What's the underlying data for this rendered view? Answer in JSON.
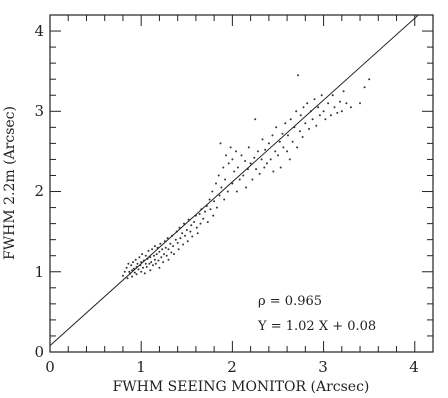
{
  "chart_data": {
    "type": "scatter",
    "xlabel": "FWHM SEEING MONITOR (Arcsec)",
    "ylabel": "FWHM 2.2m (Arcsec)",
    "xlim": [
      0,
      4.2
    ],
    "ylim": [
      0,
      4.2
    ],
    "x_ticks": [
      "0",
      "1",
      "2",
      "3",
      "4"
    ],
    "y_ticks": [
      "0",
      "1",
      "2",
      "3",
      "4"
    ],
    "minor_ticks_per_major": 5,
    "grid": false,
    "legend": "none",
    "fit_line": {
      "slope": 1.02,
      "intercept": 0.08
    },
    "annotations": {
      "rho": "ρ = 0.965",
      "equation": "Y = 1.02 X + 0.08"
    },
    "points": [
      [
        0.8,
        0.95
      ],
      [
        0.82,
        1.0
      ],
      [
        0.84,
        1.05
      ],
      [
        0.85,
        0.92
      ],
      [
        0.86,
        1.1
      ],
      [
        0.87,
        1.0
      ],
      [
        0.88,
        0.98
      ],
      [
        0.89,
        1.08
      ],
      [
        0.9,
        1.02
      ],
      [
        0.9,
        0.94
      ],
      [
        0.91,
        1.12
      ],
      [
        0.92,
        1.04
      ],
      [
        0.93,
        0.99
      ],
      [
        0.94,
        1.15
      ],
      [
        0.95,
        1.06
      ],
      [
        0.95,
        0.97
      ],
      [
        0.96,
        1.1
      ],
      [
        0.97,
        1.03
      ],
      [
        0.98,
        1.18
      ],
      [
        0.99,
        1.08
      ],
      [
        1.0,
        1.0
      ],
      [
        1.0,
        1.12
      ],
      [
        1.01,
        1.22
      ],
      [
        1.02,
        1.05
      ],
      [
        1.03,
        1.14
      ],
      [
        1.04,
        0.98
      ],
      [
        1.05,
        1.1
      ],
      [
        1.05,
        1.2
      ],
      [
        1.06,
        1.06
      ],
      [
        1.07,
        1.16
      ],
      [
        1.08,
        1.26
      ],
      [
        1.09,
        1.1
      ],
      [
        1.1,
        1.02
      ],
      [
        1.1,
        1.18
      ],
      [
        1.11,
        1.12
      ],
      [
        1.12,
        1.28
      ],
      [
        1.13,
        1.08
      ],
      [
        1.14,
        1.2
      ],
      [
        1.15,
        1.15
      ],
      [
        1.15,
        1.32
      ],
      [
        1.16,
        1.1
      ],
      [
        1.17,
        1.22
      ],
      [
        1.18,
        1.3
      ],
      [
        1.19,
        1.14
      ],
      [
        1.2,
        1.25
      ],
      [
        1.2,
        1.05
      ],
      [
        1.21,
        1.35
      ],
      [
        1.22,
        1.18
      ],
      [
        1.23,
        1.28
      ],
      [
        1.24,
        1.12
      ],
      [
        1.25,
        1.22
      ],
      [
        1.26,
        1.38
      ],
      [
        1.27,
        1.3
      ],
      [
        1.28,
        1.2
      ],
      [
        1.29,
        1.42
      ],
      [
        1.3,
        1.28
      ],
      [
        1.3,
        1.15
      ],
      [
        1.32,
        1.35
      ],
      [
        1.33,
        1.24
      ],
      [
        1.34,
        1.45
      ],
      [
        1.35,
        1.32
      ],
      [
        1.36,
        1.22
      ],
      [
        1.38,
        1.4
      ],
      [
        1.39,
        1.5
      ],
      [
        1.4,
        1.36
      ],
      [
        1.41,
        1.28
      ],
      [
        1.42,
        1.55
      ],
      [
        1.43,
        1.42
      ],
      [
        1.45,
        1.48
      ],
      [
        1.46,
        1.34
      ],
      [
        1.47,
        1.6
      ],
      [
        1.48,
        1.45
      ],
      [
        1.5,
        1.52
      ],
      [
        1.51,
        1.38
      ],
      [
        1.52,
        1.65
      ],
      [
        1.54,
        1.5
      ],
      [
        1.55,
        1.58
      ],
      [
        1.56,
        1.44
      ],
      [
        1.58,
        1.62
      ],
      [
        1.6,
        1.7
      ],
      [
        1.61,
        1.55
      ],
      [
        1.62,
        1.48
      ],
      [
        1.64,
        1.72
      ],
      [
        1.65,
        1.6
      ],
      [
        1.66,
        1.78
      ],
      [
        1.68,
        1.66
      ],
      [
        1.7,
        1.75
      ],
      [
        1.72,
        1.82
      ],
      [
        1.73,
        1.62
      ],
      [
        1.75,
        1.9
      ],
      [
        1.76,
        1.78
      ],
      [
        1.78,
        2.0
      ],
      [
        1.79,
        1.7
      ],
      [
        1.8,
        1.88
      ],
      [
        1.82,
        2.1
      ],
      [
        1.83,
        1.8
      ],
      [
        1.85,
        2.2
      ],
      [
        1.86,
        1.95
      ],
      [
        1.87,
        2.6
      ],
      [
        1.88,
        2.05
      ],
      [
        1.9,
        2.3
      ],
      [
        1.91,
        1.9
      ],
      [
        1.92,
        2.15
      ],
      [
        1.93,
        2.45
      ],
      [
        1.95,
        2.0
      ],
      [
        1.96,
        2.35
      ],
      [
        1.98,
        2.55
      ],
      [
        2.0,
        2.1
      ],
      [
        2.0,
        2.4
      ],
      [
        2.02,
        2.25
      ],
      [
        2.04,
        2.5
      ],
      [
        2.05,
        2.0
      ],
      [
        2.06,
        2.3
      ],
      [
        2.08,
        2.15
      ],
      [
        2.1,
        2.45
      ],
      [
        2.12,
        2.2
      ],
      [
        2.14,
        2.38
      ],
      [
        2.15,
        2.05
      ],
      [
        2.17,
        2.28
      ],
      [
        2.18,
        2.55
      ],
      [
        2.2,
        2.35
      ],
      [
        2.22,
        2.15
      ],
      [
        2.24,
        2.42
      ],
      [
        2.25,
        2.9
      ],
      [
        2.26,
        2.28
      ],
      [
        2.28,
        2.5
      ],
      [
        2.3,
        2.22
      ],
      [
        2.32,
        2.4
      ],
      [
        2.33,
        2.65
      ],
      [
        2.35,
        2.3
      ],
      [
        2.36,
        2.52
      ],
      [
        2.38,
        2.35
      ],
      [
        2.4,
        2.6
      ],
      [
        2.42,
        2.4
      ],
      [
        2.44,
        2.7
      ],
      [
        2.45,
        2.25
      ],
      [
        2.47,
        2.5
      ],
      [
        2.48,
        2.8
      ],
      [
        2.5,
        2.45
      ],
      [
        2.52,
        2.62
      ],
      [
        2.53,
        2.3
      ],
      [
        2.55,
        2.72
      ],
      [
        2.56,
        2.55
      ],
      [
        2.58,
        2.85
      ],
      [
        2.6,
        2.5
      ],
      [
        2.61,
        2.7
      ],
      [
        2.63,
        2.4
      ],
      [
        2.64,
        2.9
      ],
      [
        2.66,
        2.62
      ],
      [
        2.68,
        2.8
      ],
      [
        2.7,
        3.0
      ],
      [
        2.71,
        2.55
      ],
      [
        2.72,
        3.45
      ],
      [
        2.74,
        2.75
      ],
      [
        2.75,
        2.95
      ],
      [
        2.77,
        2.68
      ],
      [
        2.78,
        3.05
      ],
      [
        2.8,
        2.85
      ],
      [
        2.82,
        3.1
      ],
      [
        2.84,
        2.78
      ],
      [
        2.86,
        3.0
      ],
      [
        2.88,
        2.9
      ],
      [
        2.9,
        3.15
      ],
      [
        2.92,
        2.82
      ],
      [
        2.94,
        3.05
      ],
      [
        2.96,
        2.95
      ],
      [
        2.98,
        3.2
      ],
      [
        3.0,
        3.0
      ],
      [
        3.02,
        2.9
      ],
      [
        3.05,
        3.1
      ],
      [
        3.08,
        2.95
      ],
      [
        3.1,
        3.2
      ],
      [
        3.12,
        3.05
      ],
      [
        3.15,
        2.98
      ],
      [
        3.18,
        3.12
      ],
      [
        3.2,
        3.0
      ],
      [
        3.22,
        3.25
      ],
      [
        3.25,
        3.1
      ],
      [
        3.3,
        3.05
      ],
      [
        3.4,
        3.1
      ],
      [
        3.45,
        3.3
      ],
      [
        3.5,
        3.4
      ]
    ]
  }
}
